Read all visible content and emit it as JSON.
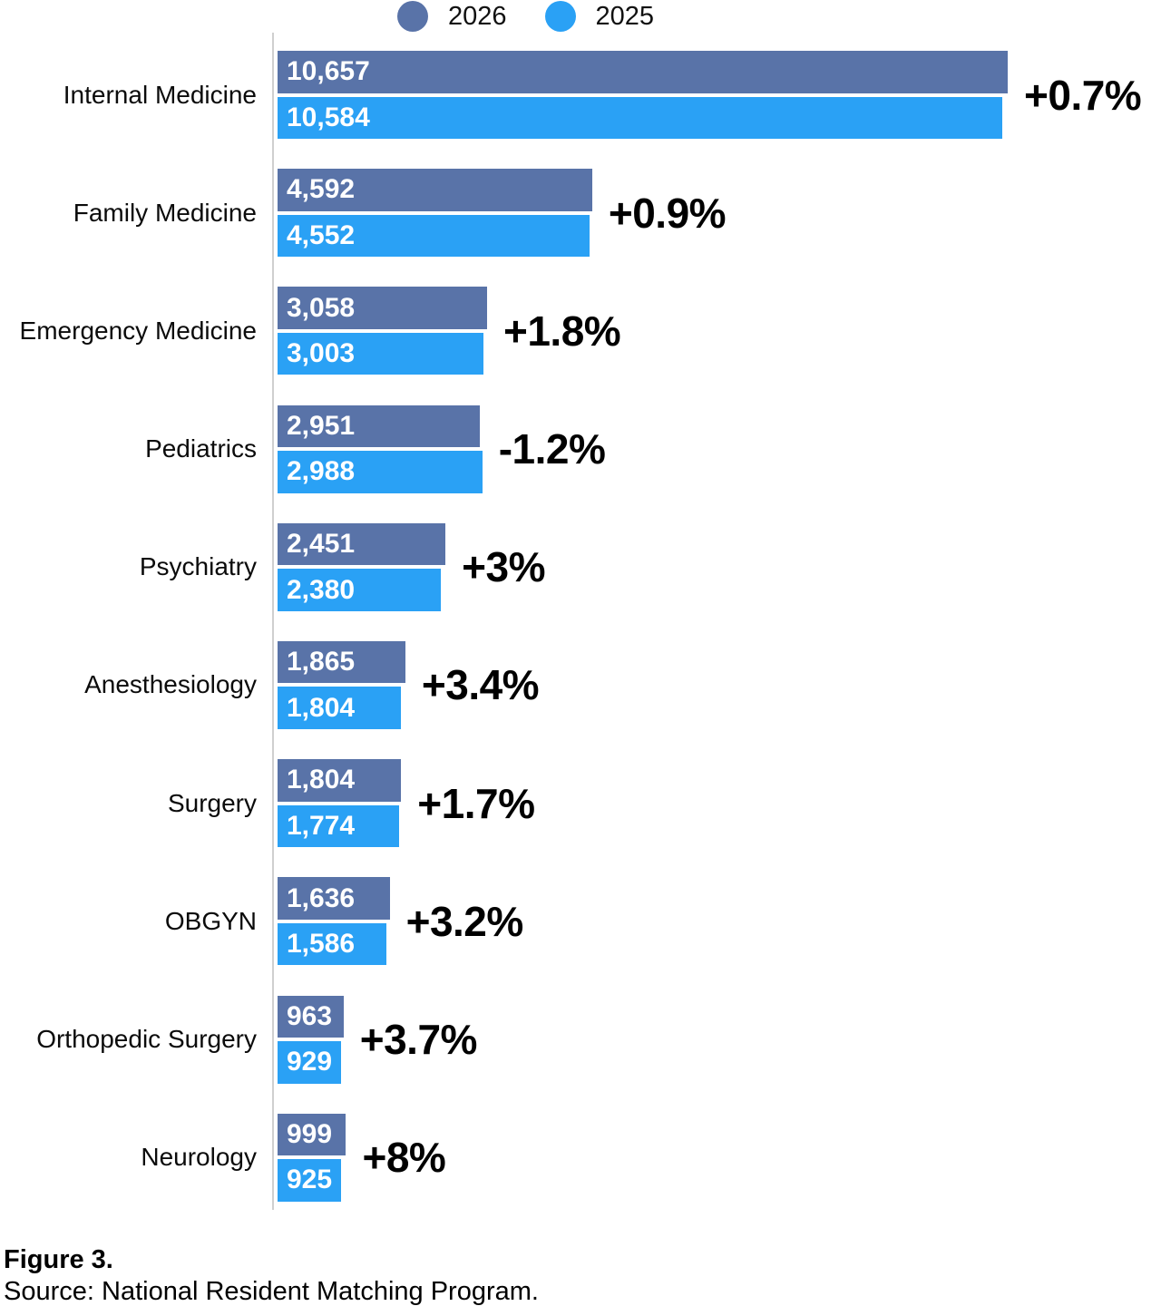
{
  "legend": {
    "items": [
      {
        "label": "2026",
        "color": "#5973A8"
      },
      {
        "label": "2025",
        "color": "#2AA1F5"
      }
    ]
  },
  "chart_data": {
    "type": "bar",
    "orientation": "horizontal",
    "legend_position": "top",
    "grid": false,
    "xlim": [
      0,
      10657
    ],
    "categories": [
      "Internal Medicine",
      "Family Medicine",
      "Emergency Medicine",
      "Pediatrics",
      "Psychiatry",
      "Anesthesiology",
      "Surgery",
      "OBGYN",
      "Orthopedic Surgery",
      "Neurology"
    ],
    "series": [
      {
        "name": "2026",
        "color": "#5973A8",
        "values": [
          10657,
          4592,
          3058,
          2951,
          2451,
          1865,
          1804,
          1636,
          963,
          999
        ]
      },
      {
        "name": "2025",
        "color": "#2AA1F5",
        "values": [
          10584,
          4552,
          3003,
          2988,
          2380,
          1804,
          1774,
          1586,
          929,
          925
        ]
      }
    ],
    "rows": [
      {
        "category": "Internal Medicine",
        "v2026": 10657,
        "v2025": 10584,
        "label2026": "10,657",
        "label2025": "10,584",
        "change": "+0.7%"
      },
      {
        "category": "Family Medicine",
        "v2026": 4592,
        "v2025": 4552,
        "label2026": "4,592",
        "label2025": "4,552",
        "change": "+0.9%"
      },
      {
        "category": "Emergency Medicine",
        "v2026": 3058,
        "v2025": 3003,
        "label2026": "3,058",
        "label2025": "3,003",
        "change": "+1.8%"
      },
      {
        "category": "Pediatrics",
        "v2026": 2951,
        "v2025": 2988,
        "label2026": "2,951",
        "label2025": "2,988",
        "change": "-1.2%"
      },
      {
        "category": "Psychiatry",
        "v2026": 2451,
        "v2025": 2380,
        "label2026": "2,451",
        "label2025": "2,380",
        "change": "+3%"
      },
      {
        "category": "Anesthesiology",
        "v2026": 1865,
        "v2025": 1804,
        "label2026": "1,865",
        "label2025": "1,804",
        "change": "+3.4%"
      },
      {
        "category": "Surgery",
        "v2026": 1804,
        "v2025": 1774,
        "label2026": "1,804",
        "label2025": "1,774",
        "change": "+1.7%"
      },
      {
        "category": "OBGYN",
        "v2026": 1636,
        "v2025": 1586,
        "label2026": "1,636",
        "label2025": "1,586",
        "change": "+3.2%"
      },
      {
        "category": "Orthopedic Surgery",
        "v2026": 963,
        "v2025": 929,
        "label2026": "963",
        "label2025": "929",
        "change": "+3.7%"
      },
      {
        "category": "Neurology",
        "v2026": 999,
        "v2025": 925,
        "label2026": "999",
        "label2025": "925",
        "change": "+8%"
      }
    ]
  },
  "footer": {
    "figure_label": "Figure 3.",
    "source": "Source: National Resident Matching Program."
  }
}
